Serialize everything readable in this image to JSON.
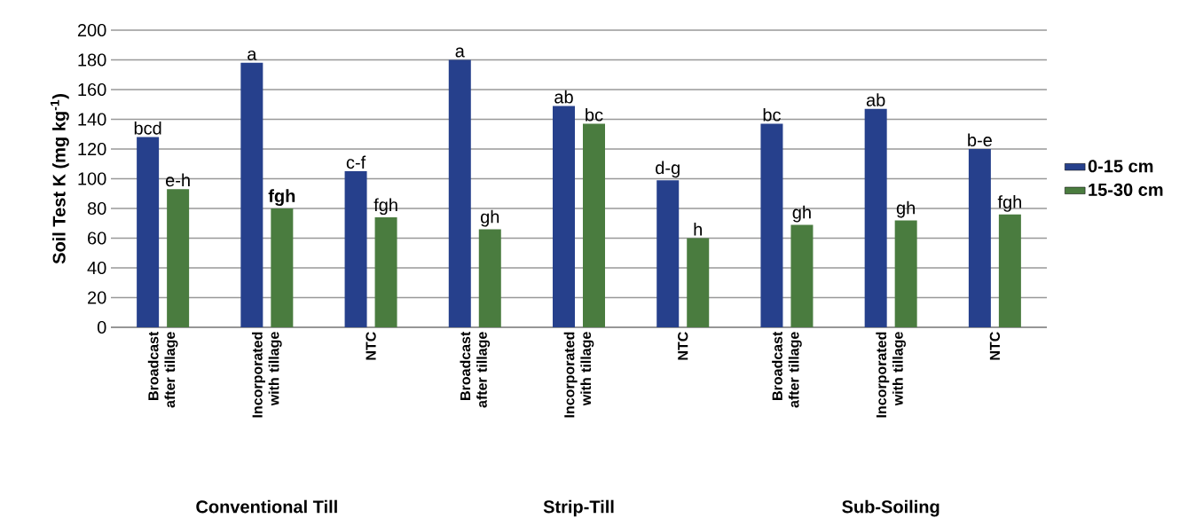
{
  "chart_data": {
    "type": "bar",
    "ylabel": "Soil Test K (mg kg$^{-1}$)",
    "categories": [
      "Broadcast after tillage",
      "Incorporated with tillage",
      "NTC",
      "Broadcast after tillage",
      "Incorporated with tillage",
      "NTC",
      "Broadcast after tillage",
      "Incorporated with tillage",
      "NTC"
    ],
    "series": [
      {
        "name": "0-15 cm",
        "color": "#26408c",
        "values": [
          128,
          178,
          105,
          180,
          149,
          99,
          137,
          147,
          120
        ],
        "value_labels": [
          "bcd",
          "a",
          "c-f",
          "a",
          "ab",
          "d-g",
          "bc",
          "ab",
          "b-e"
        ]
      },
      {
        "name": "15-30 cm",
        "color": "#4a7c3f",
        "values": [
          93,
          80,
          74,
          66,
          137,
          60,
          69,
          72,
          76
        ],
        "value_labels": [
          "e-h",
          "**fgh**",
          "fgh",
          "gh",
          "bc",
          "h",
          "gh",
          "gh",
          "fgh"
        ]
      }
    ],
    "annotations": [
      "Conventional Till",
      "Strip-Till",
      "Sub-Soiling"
    ],
    "ylim": [
      0,
      200
    ],
    "yticks": [
      0,
      20,
      40,
      60,
      80,
      100,
      120,
      140,
      160,
      180,
      200
    ],
    "grid": "y",
    "legend": "right"
  }
}
